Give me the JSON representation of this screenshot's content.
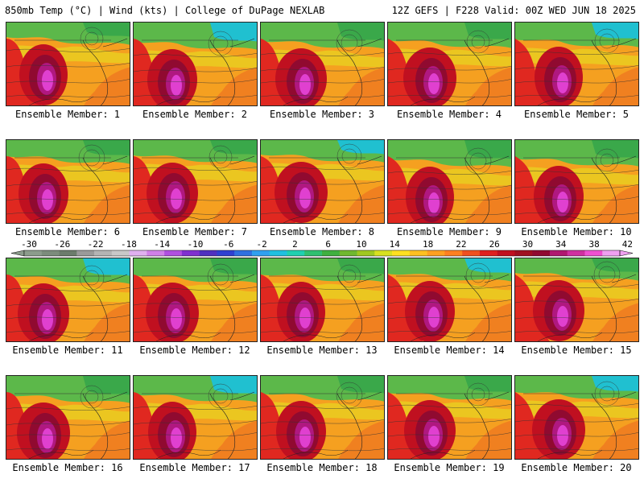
{
  "header": {
    "left_title": "850mb Temp (°C) | Wind (kts) | College of DuPage NEXLAB",
    "right_title": "12Z GEFS | F228 Valid: 00Z WED JUN 18 2025"
  },
  "panels": [
    {
      "label": "Ensemble Member: 1"
    },
    {
      "label": "Ensemble Member: 2"
    },
    {
      "label": "Ensemble Member: 3"
    },
    {
      "label": "Ensemble Member: 4"
    },
    {
      "label": "Ensemble Member: 5"
    },
    {
      "label": "Ensemble Member: 6"
    },
    {
      "label": "Ensemble Member: 7"
    },
    {
      "label": "Ensemble Member: 8"
    },
    {
      "label": "Ensemble Member: 9"
    },
    {
      "label": "Ensemble Member: 10"
    },
    {
      "label": "Ensemble Member: 11"
    },
    {
      "label": "Ensemble Member: 12"
    },
    {
      "label": "Ensemble Member: 13"
    },
    {
      "label": "Ensemble Member: 14"
    },
    {
      "label": "Ensemble Member: 15"
    },
    {
      "label": "Ensemble Member: 16"
    },
    {
      "label": "Ensemble Member: 17"
    },
    {
      "label": "Ensemble Member: 18"
    },
    {
      "label": "Ensemble Member: 19"
    },
    {
      "label": "Ensemble Member: 20"
    }
  ],
  "colorbar": {
    "ticks": [
      "-30",
      "-26",
      "-22",
      "-18",
      "-14",
      "-10",
      "-6",
      "-2",
      "2",
      "6",
      "10",
      "14",
      "18",
      "22",
      "26",
      "30",
      "34",
      "38",
      "42"
    ],
    "colors": [
      "#8c9c8c",
      "#7c8c7c",
      "#6c7c6c",
      "#9a9a9a",
      "#b4b4b4",
      "#c8c8c8",
      "#e0b0f0",
      "#d080e8",
      "#b050e0",
      "#8030d0",
      "#5030c0",
      "#3040d0",
      "#3070e0",
      "#30a0f0",
      "#20c0e0",
      "#20d0b0",
      "#30c070",
      "#40b040",
      "#70b830",
      "#a0c820",
      "#d8e020",
      "#ffe020",
      "#ffc020",
      "#ffa020",
      "#ff8020",
      "#f05020",
      "#e02020",
      "#c01020",
      "#a01020",
      "#900a30",
      "#b01870",
      "#d030a0",
      "#f050d0",
      "#f0a0f0"
    ]
  }
}
